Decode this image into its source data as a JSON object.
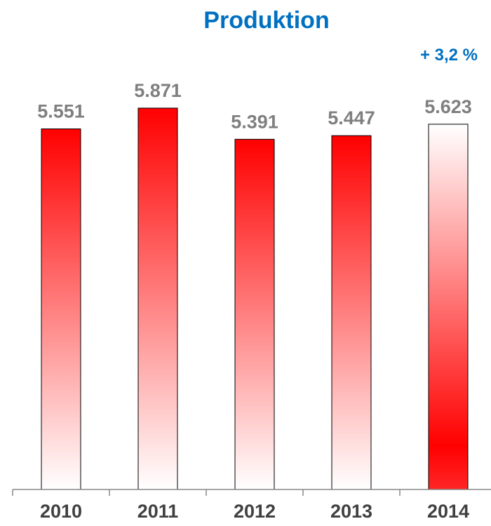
{
  "chart_data": {
    "type": "bar",
    "title": "Produktion",
    "annotation": "+ 3,2 %",
    "categories": [
      "2010",
      "2011",
      "2012",
      "2013",
      "2014"
    ],
    "values": [
      5551,
      5871,
      5391,
      5447,
      5623
    ],
    "value_labels": [
      "5.551",
      "5.871",
      "5.391",
      "5.447",
      "5.623"
    ],
    "ylim": [
      0,
      6000
    ],
    "grid": false,
    "legend": "none",
    "xlabel": "",
    "ylabel": ""
  },
  "colors": {
    "title": "#0070C0",
    "bar_fill": "#FF0000",
    "label_gray": "#7F7F7F",
    "tick_dark": "#404040"
  }
}
